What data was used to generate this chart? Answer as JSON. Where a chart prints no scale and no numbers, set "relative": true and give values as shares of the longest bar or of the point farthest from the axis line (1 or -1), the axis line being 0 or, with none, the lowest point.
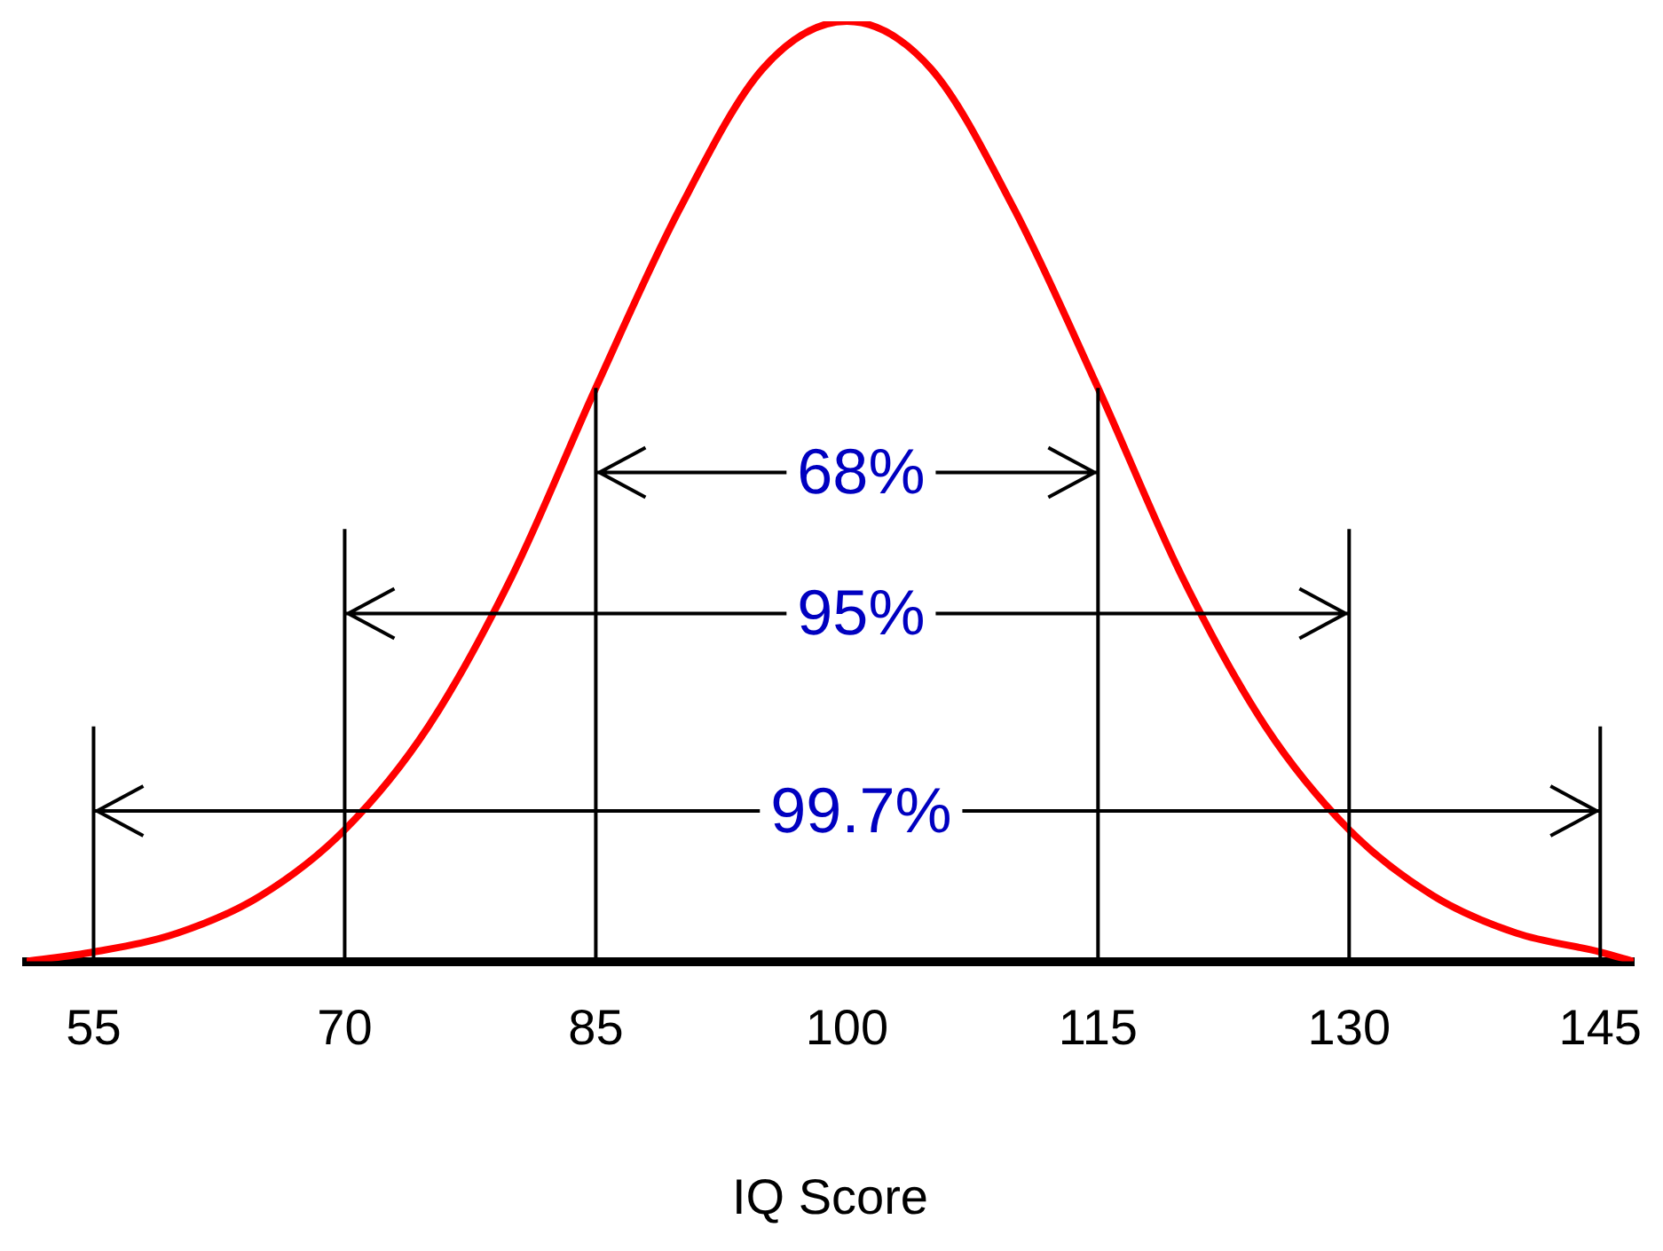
{
  "chart_data": {
    "type": "line",
    "xlabel": "IQ Score",
    "relative": true,
    "xlim": [
      51,
      147
    ],
    "xticks": [
      55,
      70,
      85,
      100,
      115,
      130,
      145
    ],
    "grid": false,
    "legend": false,
    "marker": "none",
    "line_style": "solid",
    "series": [
      {
        "color": "#ff0000",
        "x": [
          51,
          55,
          60,
          65,
          70,
          75,
          80,
          85,
          90,
          95,
          100,
          105,
          110,
          115,
          120,
          125,
          130,
          135,
          140,
          145,
          147
        ],
        "values": [
          0.0,
          0.01,
          0.03,
          0.07,
          0.14,
          0.25,
          0.41,
          0.61,
          0.8,
          0.95,
          1,
          0.95,
          0.8,
          0.61,
          0.41,
          0.25,
          0.14,
          0.07,
          0.03,
          0.01,
          0.0
        ]
      }
    ],
    "ref_lines": [
      {
        "axis": "x",
        "value": 85
      },
      {
        "axis": "x",
        "value": 115
      },
      {
        "axis": "x",
        "value": 70
      },
      {
        "axis": "x",
        "value": 130
      },
      {
        "axis": "x",
        "value": 55
      },
      {
        "axis": "x",
        "value": 145
      }
    ],
    "annotations": [
      "68%",
      "95%",
      "99.7%"
    ]
  }
}
